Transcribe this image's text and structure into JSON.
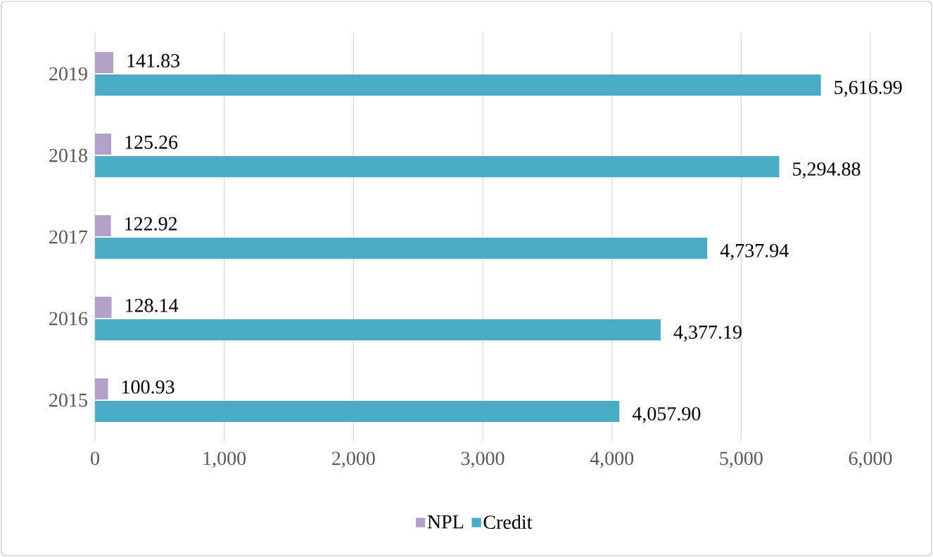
{
  "chart_data": {
    "type": "bar",
    "orientation": "horizontal",
    "categories": [
      "2019",
      "2018",
      "2017",
      "2016",
      "2015"
    ],
    "series": [
      {
        "name": "NPL",
        "color": "#b1a0c7",
        "values": [
          141.83,
          125.26,
          122.92,
          128.14,
          100.93
        ],
        "value_labels": [
          "141.83",
          "125.26",
          "122.92",
          "128.14",
          "100.93"
        ]
      },
      {
        "name": "Credit",
        "color": "#4bacc6",
        "values": [
          5616.99,
          5294.88,
          4737.94,
          4377.19,
          4057.9
        ],
        "value_labels": [
          "5,616.99",
          "5,294.88",
          "4,737.94",
          "4,377.19",
          "4,057.90"
        ]
      }
    ],
    "xlim": [
      0,
      6000
    ],
    "xticks": [
      0,
      {
        "value": 1000,
        "label": "1,000"
      },
      {
        "value": 2000,
        "label": "2,000"
      },
      {
        "value": 3000,
        "label": "3,000"
      },
      {
        "value": 4000,
        "label": "4,000"
      },
      {
        "value": 5000,
        "label": "5,000"
      },
      {
        "value": 6000,
        "label": "6,000"
      }
    ],
    "grid": "x",
    "legend": "bottom"
  }
}
